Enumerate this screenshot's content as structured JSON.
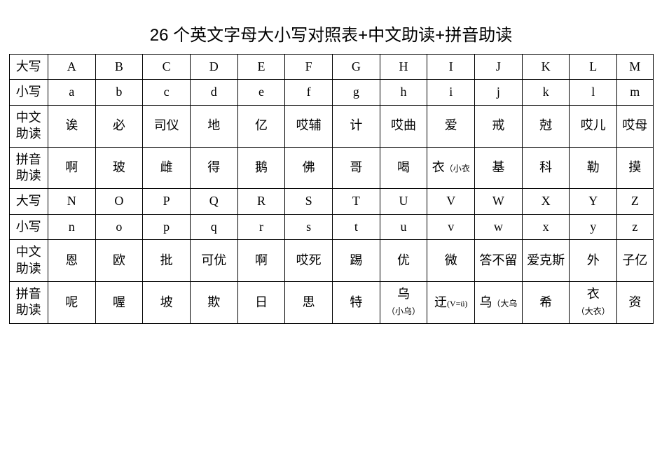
{
  "title": "26 个英文字母大小写对照表+中文助读+拼音助读",
  "row_labels": {
    "upper": "大写",
    "lower": "小写",
    "cn_aid": "中文助读",
    "py_aid": "拼音助读"
  },
  "block1": {
    "upper": [
      "A",
      "B",
      "C",
      "D",
      "E",
      "F",
      "G",
      "H",
      "I",
      "J",
      "K",
      "L",
      "M"
    ],
    "lower": [
      "a",
      "b",
      "c",
      "d",
      "e",
      "f",
      "g",
      "h",
      "i",
      "j",
      "k",
      "l",
      "m"
    ],
    "cn_aid": [
      "诶",
      "必",
      "司仪",
      "地",
      "亿",
      "哎辅",
      "计",
      "哎曲",
      "爱",
      "戒",
      "尅",
      "哎儿",
      "哎母"
    ],
    "py_aid": [
      "啊",
      "玻",
      "雌",
      "得",
      "鹅",
      "佛",
      "哥",
      "喝",
      "衣（小衣",
      "基",
      "科",
      "勒",
      "摸"
    ]
  },
  "block2": {
    "upper": [
      "N",
      "O",
      "P",
      "Q",
      "R",
      "S",
      "T",
      "U",
      "V",
      "W",
      "X",
      "Y",
      "Z"
    ],
    "lower": [
      "n",
      "o",
      "p",
      "q",
      "r",
      "s",
      "t",
      "u",
      "v",
      "w",
      "x",
      "y",
      "z"
    ],
    "cn_aid": [
      "恩",
      "欧",
      "批",
      "可优",
      "啊",
      "哎死",
      "踢",
      "优",
      "微",
      "答不留",
      "爱克斯",
      "外",
      "子亿"
    ],
    "py_aid": [
      "呢",
      "喔",
      "坡",
      "欺",
      "日",
      "思",
      "特",
      "乌（小乌）",
      "迂(V=ü)",
      "乌（大乌",
      "希",
      "衣（大衣）",
      "资"
    ]
  },
  "styling": {
    "type": "table",
    "columns_per_block": 13,
    "row_blocks": 2,
    "border_color": "#000000",
    "background_color": "#ffffff",
    "text_color": "#000000",
    "title_fontsize": 24,
    "cell_fontsize": 18,
    "annotation_fontsize": 12,
    "label_col_width": 54,
    "data_col_width": 66,
    "last_col_width": 50
  }
}
